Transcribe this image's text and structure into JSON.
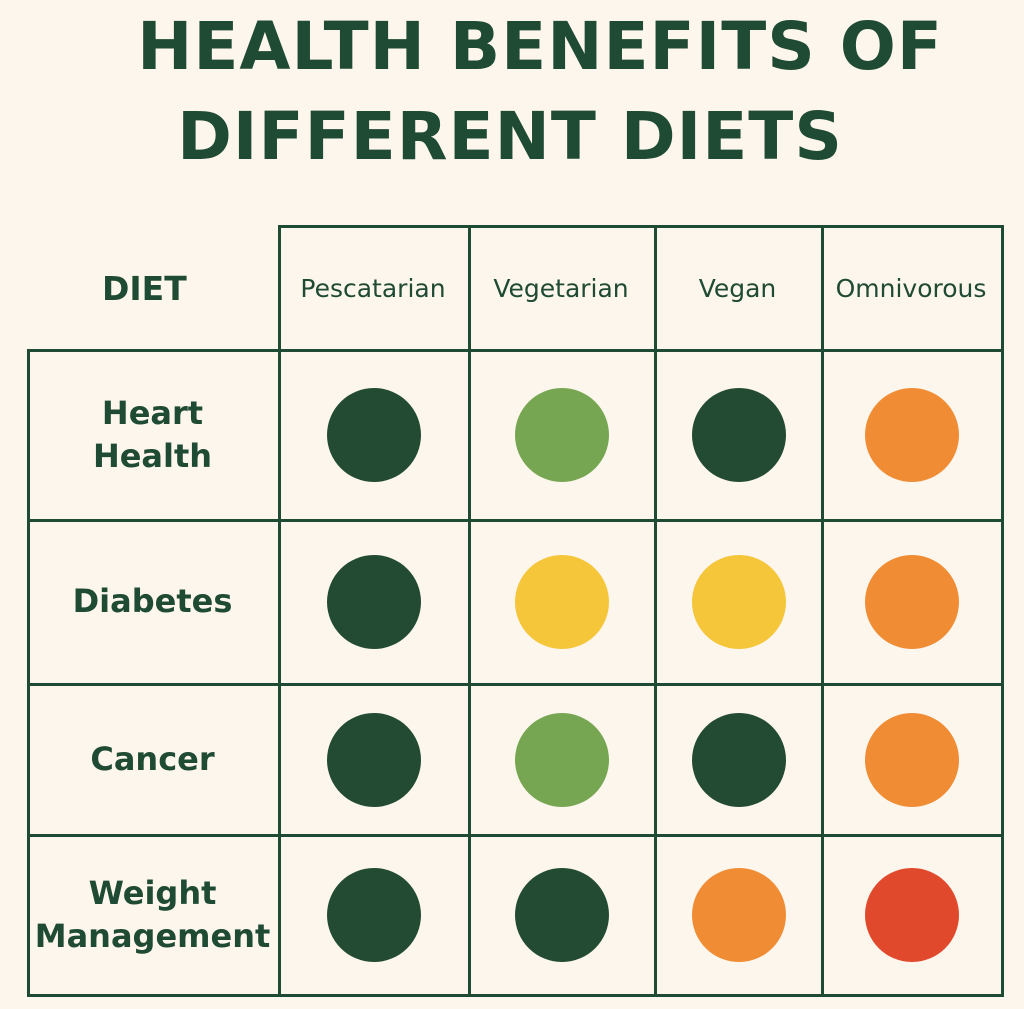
{
  "title_line1": "HEALTH BENEFITS OF",
  "title_line2": "DIFFERENT DIETS",
  "corner_label": "DIET",
  "colors": {
    "dark_green": "#234b33",
    "light_green": "#77a652",
    "yellow": "#f5c53a",
    "orange": "#f08c34",
    "red": "#e0492c",
    "ink": "#1f4a33",
    "background": "#fcf6ec"
  },
  "chart_data": {
    "type": "heatmap",
    "title": "HEALTH BENEFITS OF DIFFERENT DIETS",
    "columns": [
      "Pescatarian",
      "Vegetarian",
      "Vegan",
      "Omnivorous"
    ],
    "rows": [
      "Heart\nHealth",
      "Diabetes",
      "Cancer",
      "Weight\nManagement"
    ],
    "cells": [
      [
        "dark_green",
        "light_green",
        "dark_green",
        "orange"
      ],
      [
        "dark_green",
        "yellow",
        "yellow",
        "orange"
      ],
      [
        "dark_green",
        "light_green",
        "dark_green",
        "orange"
      ],
      [
        "dark_green",
        "dark_green",
        "orange",
        "red"
      ]
    ]
  }
}
